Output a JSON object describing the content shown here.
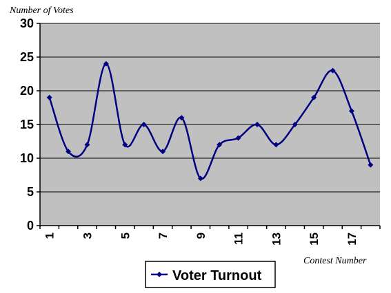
{
  "chart_data": {
    "type": "line",
    "ylabel": "Number of Votes",
    "xlabel": "Contest Number",
    "ylim": [
      0,
      30
    ],
    "yticks": [
      0,
      5,
      10,
      15,
      20,
      25,
      30
    ],
    "x": [
      1,
      2,
      3,
      4,
      5,
      6,
      7,
      8,
      9,
      10,
      11,
      12,
      13,
      14,
      15,
      16,
      17,
      18
    ],
    "xtick_labels": [
      "1",
      "3",
      "5",
      "7",
      "9",
      "11",
      "13",
      "15",
      "17"
    ],
    "series": [
      {
        "name": "Voter Turnout",
        "values": [
          19,
          11,
          12,
          24,
          12,
          15,
          11,
          16,
          7,
          12,
          13,
          15,
          12,
          15,
          19,
          23,
          17,
          9
        ]
      }
    ],
    "grid": true,
    "smooth": true,
    "legend_position": "bottom",
    "colors": {
      "plot_background": "#c0c0c0",
      "series_line": "#000080",
      "gridline": "#000000"
    }
  }
}
